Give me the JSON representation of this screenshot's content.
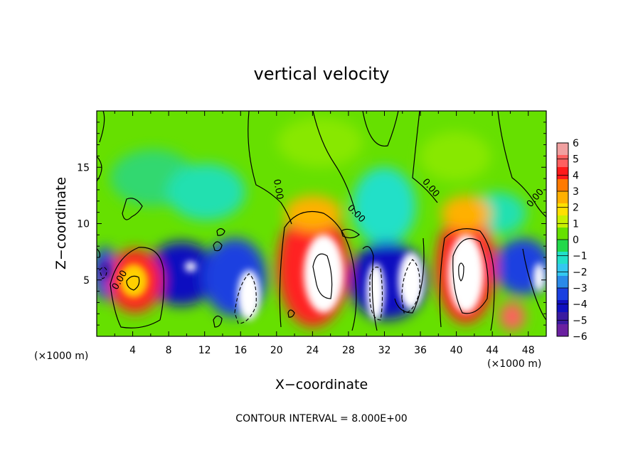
{
  "chart_data": {
    "type": "heatmap",
    "title": "vertical velocity",
    "xlabel": "X−coordinate",
    "ylabel": "Z−coordinate",
    "x_unit_left": "(×1000 m)",
    "x_unit_right": "(×1000 m)",
    "xlim": [
      0,
      50
    ],
    "ylim": [
      0,
      20
    ],
    "x_ticks": [
      "4",
      "8",
      "12",
      "16",
      "20",
      "24",
      "28",
      "32",
      "36",
      "40",
      "44",
      "48"
    ],
    "y_ticks": [
      "5",
      "10",
      "15"
    ],
    "contour_label": "0.00",
    "footer": "CONTOUR INTERVAL = 8.000E+00",
    "colorbar": {
      "ticks": [
        "6",
        "5",
        "4",
        "3",
        "2",
        "1",
        "0",
        "−1",
        "−2",
        "−3",
        "−4",
        "−5",
        "−6"
      ],
      "range": [
        -6,
        6
      ],
      "colors": [
        "#f0a0a0",
        "#ff6060",
        "#ff1a1a",
        "#ff7a00",
        "#ffb000",
        "#ffe000",
        "#c8f000",
        "#66e000",
        "#22d84a",
        "#22e0c8",
        "#33c8f0",
        "#2a8ae8",
        "#1a40e0",
        "#1010c0",
        "#3a1aa0",
        "#6a20a0"
      ]
    },
    "features": [
      {
        "x": 4.5,
        "z": 5.0,
        "sign": "up"
      },
      {
        "x": 10.5,
        "z": 5.5,
        "sign": "down"
      },
      {
        "x": 17.0,
        "z": 3.5,
        "sign": "down"
      },
      {
        "x": 24.5,
        "z": 5.0,
        "sign": "up"
      },
      {
        "x": 31.0,
        "z": 4.0,
        "sign": "down"
      },
      {
        "x": 34.5,
        "z": 4.5,
        "sign": "down"
      },
      {
        "x": 41.0,
        "z": 6.0,
        "sign": "up"
      },
      {
        "x": 48.5,
        "z": 5.0,
        "sign": "down"
      }
    ]
  }
}
